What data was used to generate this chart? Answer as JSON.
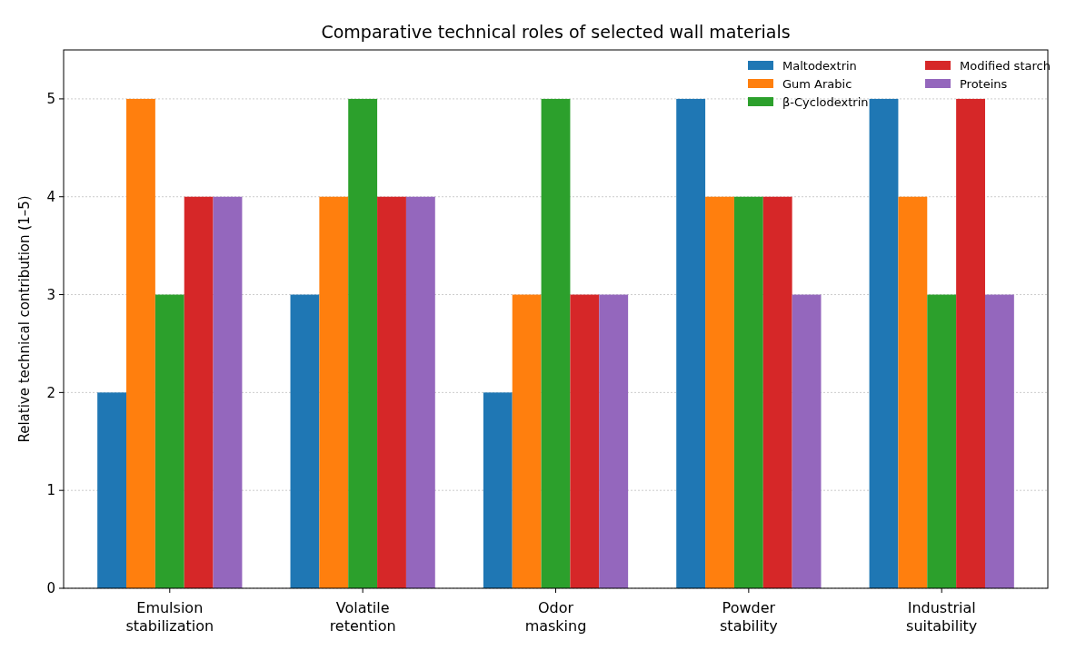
{
  "chart_data": {
    "type": "bar",
    "title": "Comparative technical roles of selected wall materials",
    "ylabel": "Relative technical contribution (1–5)",
    "categories": [
      "Emulsion\nstabilization",
      "Volatile\nretention",
      "Odor\nmasking",
      "Powder\nstability",
      "Industrial\nsuitability"
    ],
    "series": [
      {
        "name": "Maltodextrin",
        "color": "#1f77b4",
        "values": [
          2,
          3,
          2,
          5,
          5
        ]
      },
      {
        "name": "Gum Arabic",
        "color": "#ff7f0e",
        "values": [
          5,
          4,
          3,
          4,
          4
        ]
      },
      {
        "name": "β-Cyclodextrin",
        "color": "#2ca02c",
        "values": [
          3,
          5,
          5,
          4,
          3
        ]
      },
      {
        "name": "Modified starch",
        "color": "#d62728",
        "values": [
          4,
          4,
          3,
          4,
          5
        ]
      },
      {
        "name": "Proteins",
        "color": "#9467bd",
        "values": [
          4,
          4,
          3,
          3,
          3
        ]
      }
    ],
    "ylim": [
      0,
      5.5
    ],
    "yticks": [
      0,
      1,
      2,
      3,
      4,
      5
    ],
    "grid": "y",
    "legend": "top right"
  }
}
